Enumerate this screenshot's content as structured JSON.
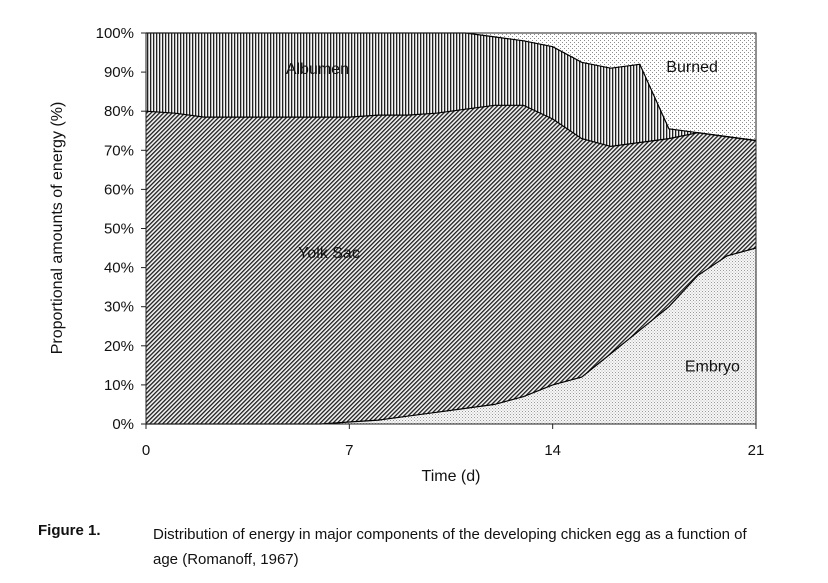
{
  "chart_data": {
    "type": "area",
    "stacked": true,
    "x_unit": "days",
    "x": [
      0,
      1,
      2,
      3,
      4,
      5,
      6,
      7,
      8,
      9,
      10,
      11,
      12,
      13,
      14,
      15,
      16,
      17,
      18,
      19,
      20,
      21
    ],
    "series": [
      {
        "name": "Embryo",
        "values": [
          0,
          0,
          0,
          0,
          0,
          0,
          0,
          0.5,
          1,
          2,
          3,
          4,
          5,
          7,
          10,
          12,
          18,
          24,
          30,
          38,
          43,
          45
        ]
      },
      {
        "name": "Yolk Sac",
        "values": [
          80,
          79.5,
          78.5,
          78.5,
          78.5,
          78.5,
          78.5,
          78,
          78,
          77,
          76.5,
          76.5,
          76.5,
          74.5,
          68,
          61,
          53,
          48,
          43,
          36.5,
          30.5,
          27.5
        ]
      },
      {
        "name": "Albumen",
        "values": [
          20,
          20.5,
          21.5,
          21.5,
          21.5,
          21.5,
          21.5,
          21.5,
          21,
          21,
          20.5,
          19.5,
          17.5,
          16.5,
          18.5,
          19.5,
          20,
          20,
          2.5,
          0,
          0,
          0
        ]
      },
      {
        "name": "Burned",
        "values": [
          0,
          0,
          0,
          0,
          0,
          0,
          0,
          0,
          0,
          0,
          0,
          0,
          1,
          2,
          3.5,
          7.5,
          9,
          8,
          24.5,
          25.5,
          26.5,
          27.5
        ]
      }
    ],
    "xlabel": "Time (d)",
    "ylabel": "Proportional amounts of energy (%)",
    "xlim": [
      0,
      21
    ],
    "ylim": [
      0,
      100
    ],
    "x_ticks": [
      "0",
      "7",
      "14",
      "21"
    ],
    "x_tick_values": [
      0,
      7,
      14,
      21
    ],
    "y_ticks": [
      "0%",
      "10%",
      "20%",
      "30%",
      "40%",
      "50%",
      "60%",
      "70%",
      "80%",
      "90%",
      "100%"
    ],
    "y_tick_values": [
      0,
      10,
      20,
      30,
      40,
      50,
      60,
      70,
      80,
      90,
      100
    ],
    "labels": {
      "embryo": "Embryo",
      "yolk": "Yolk Sac",
      "albumen": "Albumen",
      "burned": "Burned"
    },
    "label_positions": {
      "embryo": [
        19.5,
        15
      ],
      "yolk": [
        6.3,
        44
      ],
      "albumen": [
        5.9,
        91
      ],
      "burned": [
        18.8,
        91.5
      ]
    },
    "grid": false,
    "legend": "none (labels inside areas)"
  },
  "caption": {
    "label": "Figure 1.",
    "text": "Distribution of energy in major components of the developing chicken egg as a function of age (Romanoff, 1967)"
  }
}
